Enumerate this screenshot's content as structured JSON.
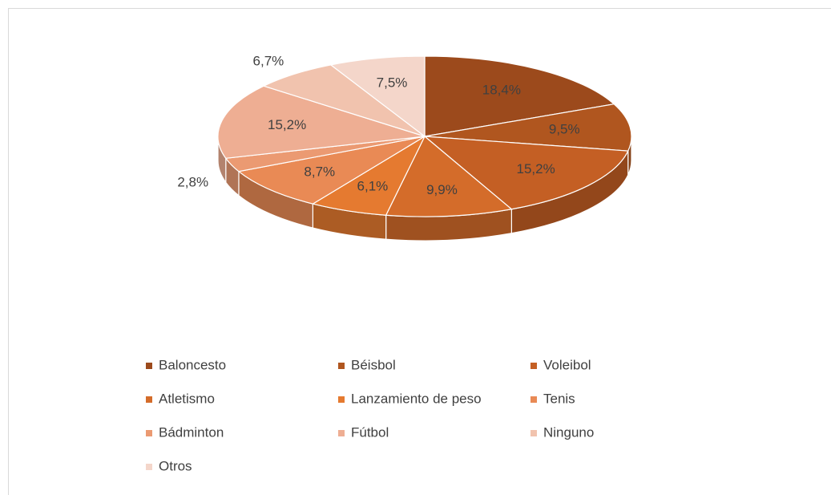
{
  "chart_data": {
    "type": "pie3d",
    "categories": [
      "Baloncesto",
      "Béisbol",
      "Voleibol",
      "Atletismo",
      "Lanzamiento de peso",
      "Tenis",
      "Bádminton",
      "Fútbol",
      "Ninguno",
      "Otros"
    ],
    "values": [
      18.4,
      9.5,
      15.2,
      9.9,
      6.1,
      8.7,
      2.8,
      15.2,
      6.7,
      7.5
    ],
    "value_labels": [
      "18,4%",
      "9,5%",
      "15,2%",
      "9,9%",
      "6,1%",
      "8,7%",
      "2,8%",
      "15,2%",
      "6,7%",
      "7,5%"
    ],
    "colors": [
      "#9c4a1c",
      "#b0561f",
      "#c45f24",
      "#d46c2a",
      "#e57a30",
      "#e98a55",
      "#eb9a72",
      "#eeae93",
      "#f1c3ae",
      "#f4d6ca"
    ],
    "legend": "bottom"
  }
}
